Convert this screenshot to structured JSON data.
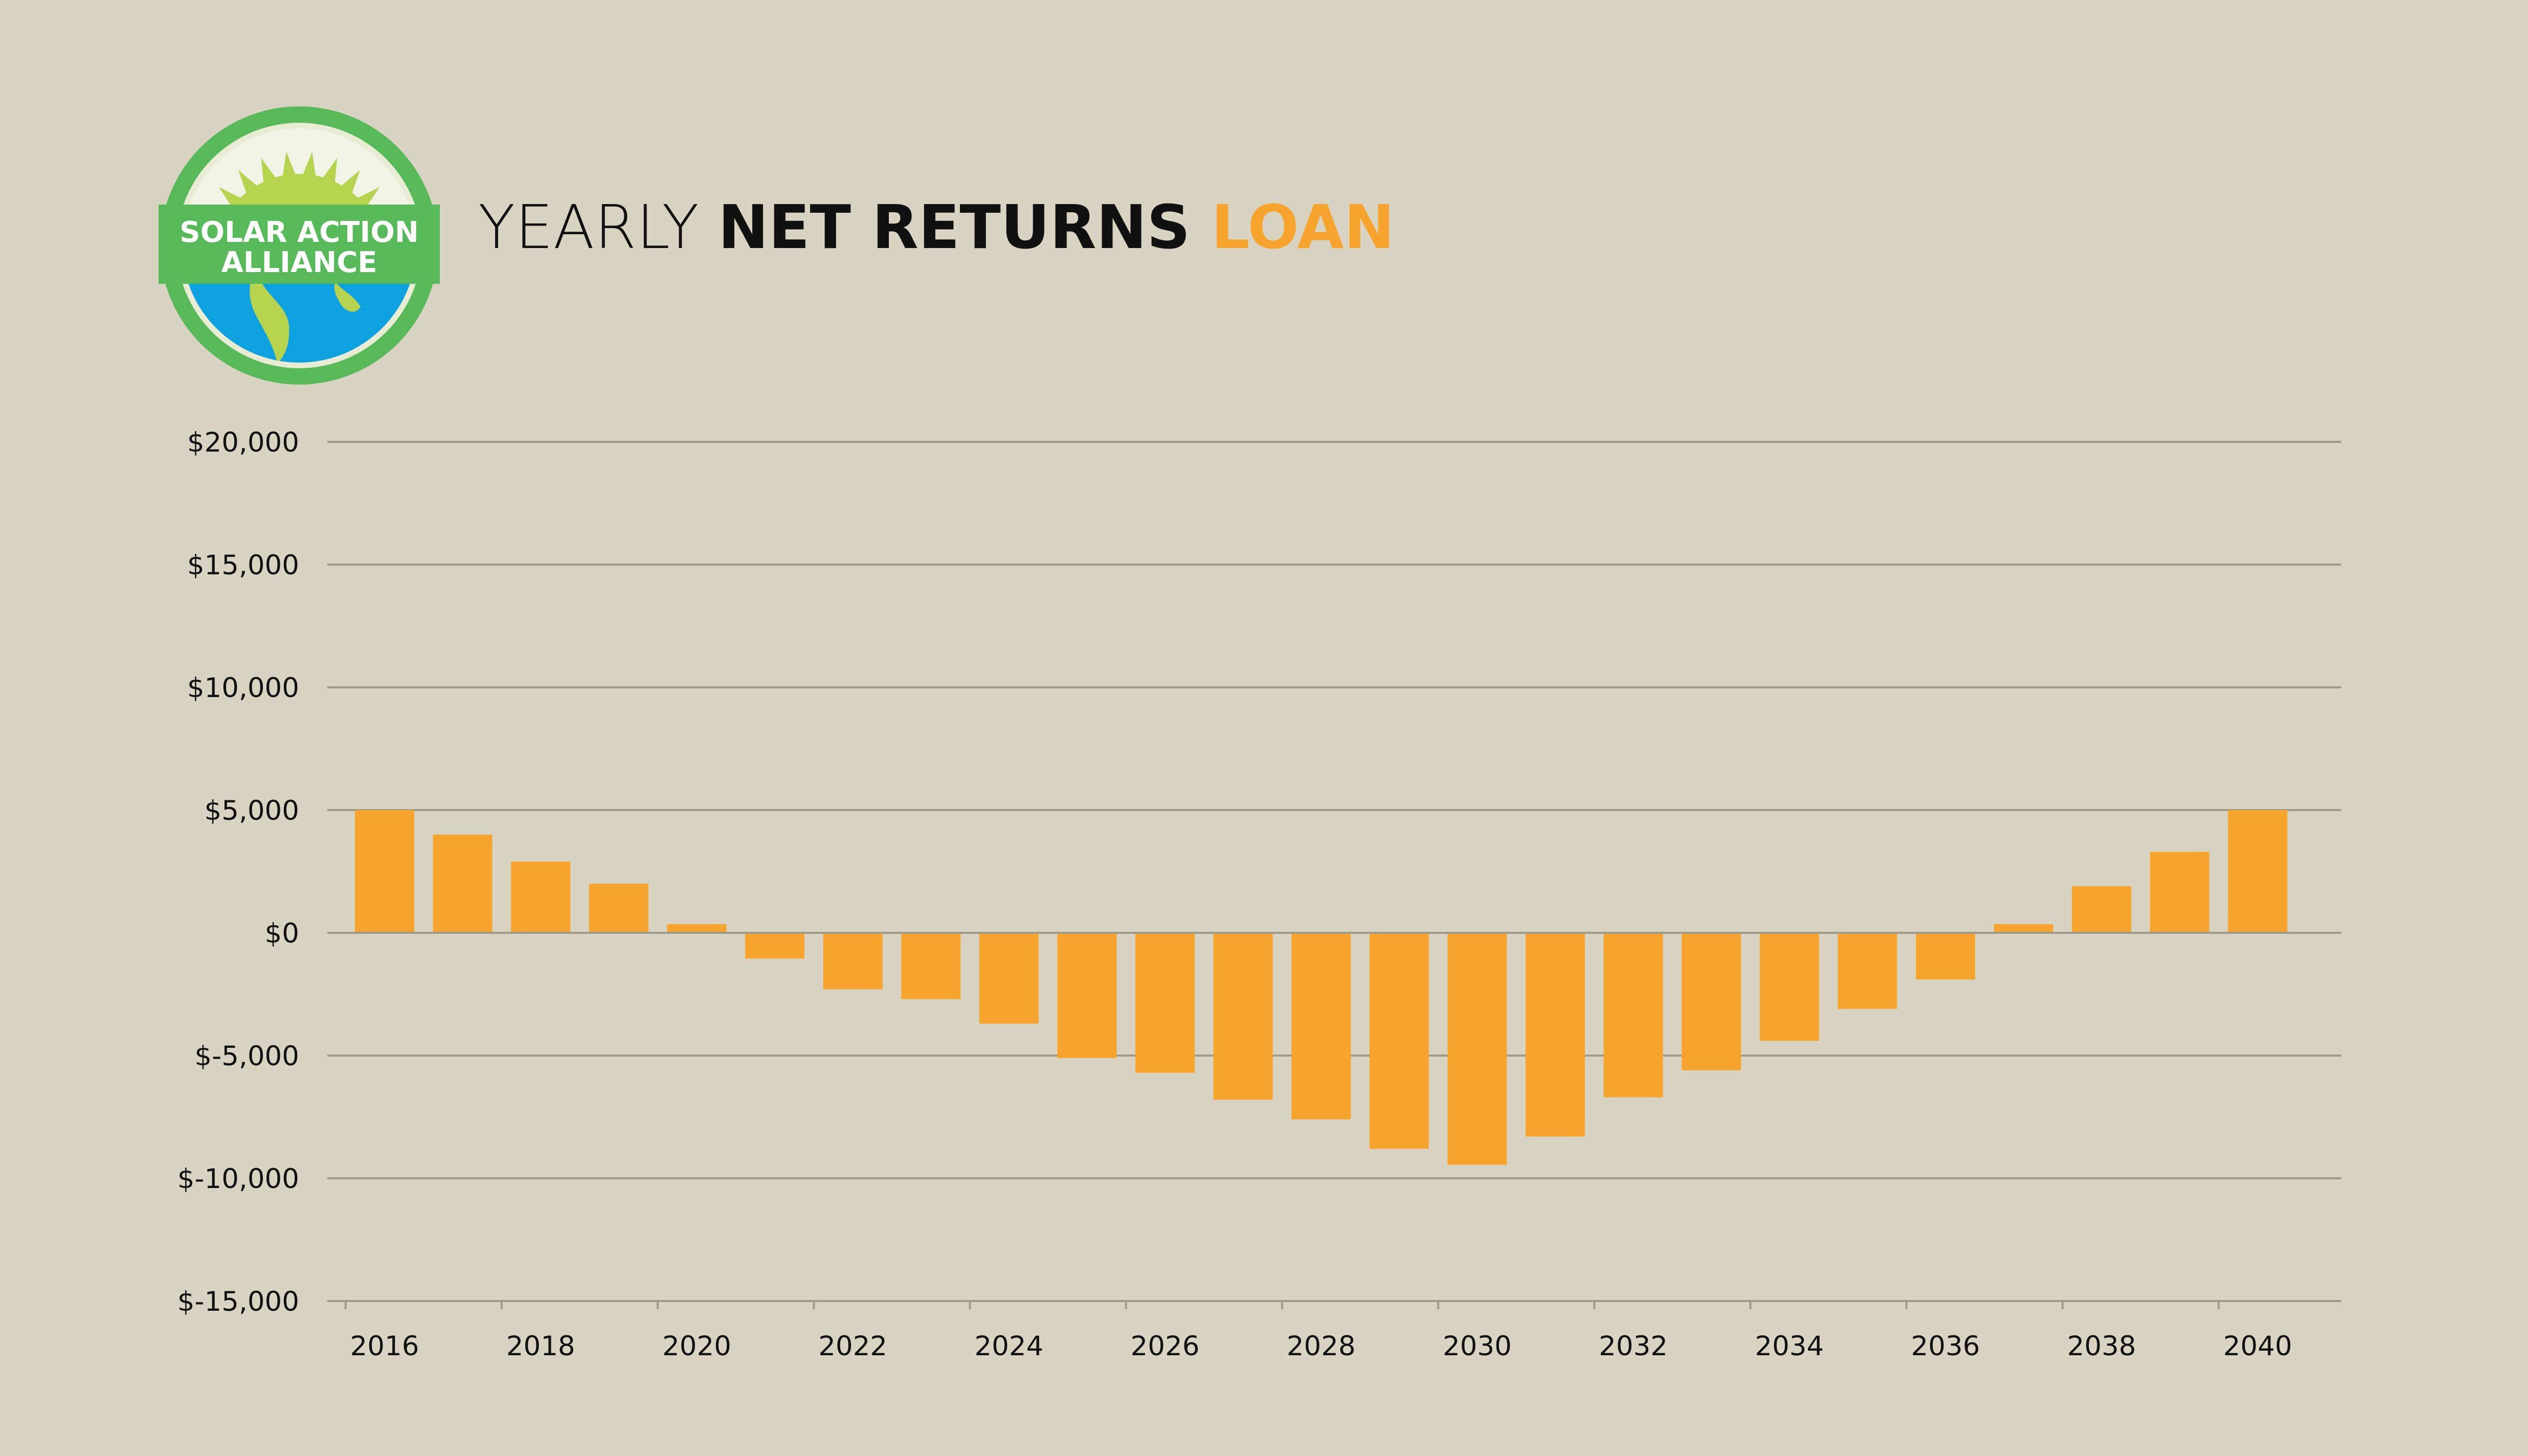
{
  "brand": {
    "line1": "SOLAR ACTION",
    "line2": "ALLIANCE"
  },
  "title": {
    "part1": "YEARLY ",
    "part2": "NET RETURNS",
    "part3": " LOAN"
  },
  "colors": {
    "background": "#d9d3c1",
    "bar": "#f7a42f",
    "accent": "#f7a42f",
    "gridline": "#9f9a8a",
    "logo_ring": "#58b95a",
    "logo_sun": "#b5d34e",
    "logo_ocean": "#0ea1df"
  },
  "chart_data": {
    "type": "bar",
    "title": "YEARLY NET RETURNS LOAN",
    "xlabel": "",
    "ylabel": "",
    "grid": true,
    "ylim": [
      -15000,
      20000
    ],
    "y_ticks": [
      20000,
      15000,
      10000,
      5000,
      0,
      -5000,
      -10000,
      -15000
    ],
    "y_tick_labels": [
      "$20,000",
      "$15,000",
      "$10,000",
      "$5,000",
      "$0",
      "$-5,000",
      "$-10,000",
      "$-15,000"
    ],
    "x_tick_labels": [
      "2016",
      "2018",
      "2020",
      "2022",
      "2024",
      "2026",
      "2028",
      "2030",
      "2032",
      "2034",
      "2036",
      "2038",
      "2040"
    ],
    "categories": [
      "2016",
      "2017",
      "2018",
      "2019",
      "2020",
      "2021",
      "2022",
      "2023",
      "2024",
      "2025",
      "2026",
      "2027",
      "2028",
      "2029",
      "2030",
      "2031",
      "2032",
      "2033",
      "2034",
      "2035",
      "2036",
      "2037",
      "2038",
      "2039",
      "2040"
    ],
    "values": [
      5000,
      4000,
      2900,
      2000,
      350,
      -1050,
      -2300,
      -2700,
      -3700,
      -5100,
      -5700,
      -6800,
      -7600,
      -8800,
      -9450,
      -8300,
      -6700,
      -5600,
      -4400,
      -3100,
      -1900,
      350,
      1900,
      3300,
      5000
    ]
  }
}
